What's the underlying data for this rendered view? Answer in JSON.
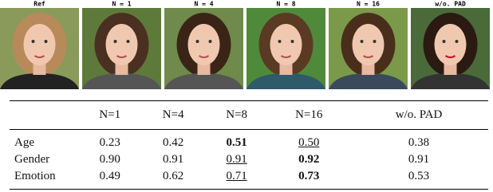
{
  "figure": {
    "labels": [
      "Ref",
      "N = 1",
      "N = 4",
      "N = 8",
      "N = 16",
      "w/o. PAD"
    ]
  },
  "table": {
    "header": [
      "N=1",
      "N=4",
      "N=8",
      "N=16",
      "w/o. PAD"
    ],
    "rows": [
      [
        "Age",
        "0.23",
        "0.42",
        "0.51",
        "0.50",
        "0.38"
      ],
      [
        "Gender",
        "0.90",
        "0.91",
        "0.91",
        "0.92",
        "0.91"
      ],
      [
        "Emotion",
        "0.49",
        "0.62",
        "0.71",
        "0.73",
        "0.53"
      ]
    ]
  }
}
